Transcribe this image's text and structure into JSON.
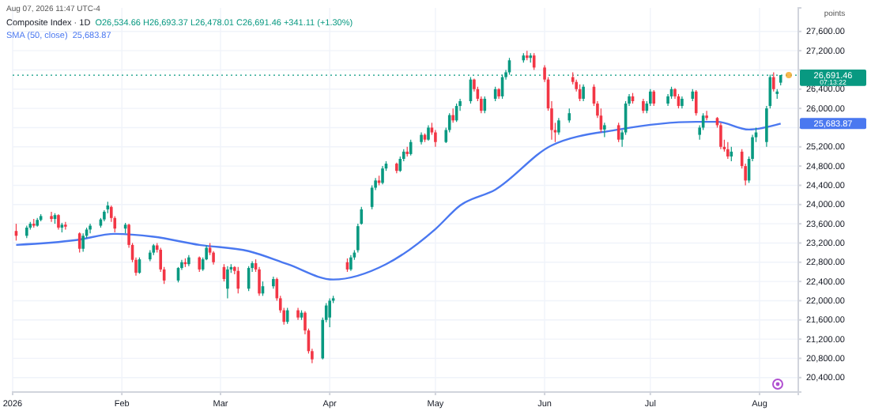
{
  "chart_data": {
    "type": "candlestick",
    "title": "Composite Index · 1D",
    "subtitle": "O26,534.66 H26,693.37 L26,478.01 C26,691.46 +341.11 (+1.30%)",
    "ylabel": "points",
    "x": [
      "2026-01-02",
      "2026-01-05",
      "2026-01-06",
      "2026-01-07",
      "2026-01-08",
      "2026-01-09",
      "2026-01-12",
      "2026-01-13",
      "2026-01-14",
      "2026-01-15",
      "2026-01-16",
      "2026-01-20",
      "2026-01-21",
      "2026-01-22",
      "2026-01-23",
      "2026-01-26",
      "2026-01-27",
      "2026-01-28",
      "2026-01-29",
      "2026-01-30",
      "2026-02-02",
      "2026-02-03",
      "2026-02-04",
      "2026-02-05",
      "2026-02-06",
      "2026-02-09",
      "2026-02-10",
      "2026-02-11",
      "2026-02-12",
      "2026-02-13",
      "2026-02-17",
      "2026-02-18",
      "2026-02-19",
      "2026-02-20",
      "2026-02-23",
      "2026-02-24",
      "2026-02-25",
      "2026-02-26",
      "2026-02-27",
      "2026-03-02",
      "2026-03-03",
      "2026-03-04",
      "2026-03-05",
      "2026-03-06",
      "2026-03-09",
      "2026-03-10",
      "2026-03-11",
      "2026-03-12",
      "2026-03-13",
      "2026-03-16",
      "2026-03-17",
      "2026-03-18",
      "2026-03-19",
      "2026-03-20",
      "2026-03-23",
      "2026-03-24",
      "2026-03-25",
      "2026-03-26",
      "2026-03-27",
      "2026-03-30",
      "2026-03-31",
      "2026-04-01",
      "2026-04-02",
      "2026-04-06",
      "2026-04-07",
      "2026-04-08",
      "2026-04-09",
      "2026-04-10",
      "2026-04-13",
      "2026-04-14",
      "2026-04-15",
      "2026-04-16",
      "2026-04-17",
      "2026-04-20",
      "2026-04-21",
      "2026-04-22",
      "2026-04-23",
      "2026-04-24",
      "2026-04-27",
      "2026-04-28",
      "2026-04-29",
      "2026-04-30",
      "2026-05-01",
      "2026-05-04",
      "2026-05-05",
      "2026-05-06",
      "2026-05-07",
      "2026-05-08",
      "2026-05-11",
      "2026-05-12",
      "2026-05-13",
      "2026-05-14",
      "2026-05-15",
      "2026-05-18",
      "2026-05-19",
      "2026-05-20",
      "2026-05-21",
      "2026-05-22",
      "2026-05-26",
      "2026-05-27",
      "2026-05-28",
      "2026-05-29",
      "2026-06-01",
      "2026-06-02",
      "2026-06-03",
      "2026-06-04",
      "2026-06-05",
      "2026-06-08",
      "2026-06-09",
      "2026-06-10",
      "2026-06-11",
      "2026-06-12",
      "2026-06-15",
      "2026-06-16",
      "2026-06-17",
      "2026-06-18",
      "2026-06-22",
      "2026-06-23",
      "2026-06-24",
      "2026-06-25",
      "2026-06-26",
      "2026-06-29",
      "2026-06-30",
      "2026-07-01",
      "2026-07-02",
      "2026-07-06",
      "2026-07-07",
      "2026-07-08",
      "2026-07-09",
      "2026-07-10",
      "2026-07-13",
      "2026-07-14",
      "2026-07-15",
      "2026-07-16",
      "2026-07-17",
      "2026-07-20",
      "2026-07-21",
      "2026-07-22",
      "2026-07-23",
      "2026-07-24",
      "2026-07-27",
      "2026-07-28",
      "2026-07-29",
      "2026-07-30",
      "2026-07-31",
      "2026-08-03",
      "2026-08-04",
      "2026-08-05",
      "2026-08-06",
      "2026-08-07"
    ],
    "ohlc": [
      [
        23450,
        23600,
        23250,
        23350
      ],
      [
        23350,
        23560,
        23300,
        23520
      ],
      [
        23520,
        23640,
        23480,
        23600
      ],
      [
        23600,
        23700,
        23520,
        23560
      ],
      [
        23560,
        23720,
        23540,
        23680
      ],
      [
        23680,
        23800,
        23650,
        23760
      ],
      [
        23760,
        23850,
        23640,
        23700
      ],
      [
        23700,
        23820,
        23600,
        23780
      ],
      [
        23780,
        23800,
        23480,
        23520
      ],
      [
        23520,
        23620,
        23420,
        23580
      ],
      [
        23580,
        23640,
        23480,
        23540
      ],
      [
        23400,
        23420,
        23000,
        23080
      ],
      [
        23080,
        23400,
        23020,
        23350
      ],
      [
        23350,
        23520,
        23300,
        23480
      ],
      [
        23480,
        23600,
        23400,
        23560
      ],
      [
        23560,
        23720,
        23520,
        23690
      ],
      [
        23690,
        23880,
        23650,
        23850
      ],
      [
        23900,
        24060,
        23820,
        23980
      ],
      [
        23950,
        23980,
        23640,
        23720
      ],
      [
        23720,
        23760,
        23420,
        23500
      ],
      [
        23500,
        23620,
        23400,
        23580
      ],
      [
        23580,
        23600,
        23100,
        23160
      ],
      [
        23160,
        23200,
        22800,
        22850
      ],
      [
        22850,
        22900,
        22520,
        22580
      ],
      [
        22580,
        22900,
        22560,
        22860
      ],
      [
        22860,
        23050,
        22820,
        23000
      ],
      [
        23000,
        23180,
        22950,
        23150
      ],
      [
        23150,
        23200,
        23000,
        23060
      ],
      [
        23060,
        23100,
        22600,
        22650
      ],
      [
        22650,
        22700,
        22350,
        22420
      ],
      [
        22420,
        22700,
        22380,
        22680
      ],
      [
        22680,
        22850,
        22640,
        22800
      ],
      [
        22800,
        22880,
        22700,
        22760
      ],
      [
        22760,
        22950,
        22720,
        22900
      ],
      [
        22900,
        22920,
        22600,
        22650
      ],
      [
        22650,
        22900,
        22620,
        22860
      ],
      [
        22860,
        23150,
        22840,
        23100
      ],
      [
        23100,
        23200,
        22950,
        23000
      ],
      [
        23000,
        23030,
        22750,
        22800
      ],
      [
        22700,
        22760,
        22400,
        22450
      ],
      [
        22250,
        22720,
        22050,
        22650
      ],
      [
        22650,
        22760,
        22580,
        22700
      ],
      [
        22700,
        22720,
        22550,
        22620
      ],
      [
        22620,
        22700,
        22150,
        22250
      ],
      [
        22250,
        22720,
        22200,
        22680
      ],
      [
        22680,
        22820,
        22600,
        22780
      ],
      [
        22780,
        22860,
        22600,
        22650
      ],
      [
        22650,
        22700,
        22100,
        22150
      ],
      [
        22150,
        22400,
        22100,
        22300
      ],
      [
        22300,
        22500,
        22250,
        22450
      ],
      [
        22450,
        22480,
        22000,
        22050
      ],
      [
        22050,
        22100,
        21750,
        21800
      ],
      [
        21800,
        21850,
        21500,
        21560
      ],
      [
        21560,
        21850,
        21520,
        21800
      ],
      [
        21800,
        21850,
        21600,
        21650
      ],
      [
        21650,
        21800,
        21600,
        21750
      ],
      [
        21750,
        21780,
        21300,
        21380
      ],
      [
        21380,
        21420,
        20900,
        20950
      ],
      [
        20950,
        21000,
        20700,
        20780
      ],
      [
        20800,
        21650,
        20780,
        21600
      ],
      [
        21600,
        21950,
        21550,
        21900
      ],
      [
        21650,
        22050,
        21450,
        22000
      ],
      [
        22000,
        22100,
        21950,
        22050
      ],
      [
        22800,
        22880,
        22600,
        22650
      ],
      [
        22650,
        22950,
        22620,
        22900
      ],
      [
        22900,
        23050,
        22850,
        23000
      ],
      [
        23050,
        23600,
        23000,
        23550
      ],
      [
        23600,
        23950,
        23580,
        23900
      ],
      [
        23950,
        24400,
        23900,
        24350
      ],
      [
        24350,
        24550,
        24300,
        24500
      ],
      [
        24500,
        24600,
        24400,
        24450
      ],
      [
        24450,
        24800,
        24420,
        24750
      ],
      [
        24750,
        24900,
        24700,
        24850
      ],
      [
        24850,
        24870,
        24650,
        24700
      ],
      [
        24700,
        25000,
        24680,
        24950
      ],
      [
        24950,
        25150,
        24900,
        25100
      ],
      [
        25100,
        25200,
        25000,
        25050
      ],
      [
        25050,
        25350,
        25020,
        25300
      ],
      [
        25300,
        25500,
        25250,
        25450
      ],
      [
        25450,
        25480,
        25300,
        25350
      ],
      [
        25350,
        25650,
        25330,
        25600
      ],
      [
        25600,
        25700,
        25450,
        25500
      ],
      [
        25500,
        25550,
        25200,
        25300
      ],
      [
        25300,
        25600,
        25280,
        25550
      ],
      [
        25550,
        25900,
        25500,
        25860
      ],
      [
        25860,
        26000,
        25700,
        25750
      ],
      [
        25750,
        26100,
        25720,
        26050
      ],
      [
        26050,
        26200,
        25950,
        26150
      ],
      [
        26150,
        26650,
        26100,
        26600
      ],
      [
        26600,
        26620,
        26350,
        26400
      ],
      [
        26400,
        26450,
        26150,
        26200
      ],
      [
        26200,
        26250,
        25900,
        25950
      ],
      [
        25950,
        26250,
        25900,
        26200
      ],
      [
        26200,
        26450,
        26150,
        26400
      ],
      [
        26400,
        26420,
        26200,
        26250
      ],
      [
        26250,
        26700,
        26200,
        26650
      ],
      [
        26650,
        26800,
        26600,
        26750
      ],
      [
        26750,
        27050,
        26700,
        27000
      ],
      [
        27000,
        27150,
        26950,
        27100
      ],
      [
        27100,
        27200,
        27000,
        27050
      ],
      [
        27050,
        27150,
        26950,
        27100
      ],
      [
        27100,
        27150,
        26800,
        26850
      ],
      [
        26850,
        26900,
        26550,
        26600
      ],
      [
        26600,
        26650,
        25950,
        26000
      ],
      [
        26000,
        26150,
        25350,
        25550
      ],
      [
        25550,
        25700,
        25300,
        25500
      ],
      [
        25500,
        25800,
        25450,
        25750
      ],
      [
        25750,
        26000,
        25700,
        25900
      ],
      [
        26650,
        26750,
        26500,
        26550
      ],
      [
        26550,
        26600,
        26350,
        26400
      ],
      [
        26400,
        26500,
        26150,
        26200
      ],
      [
        26200,
        26500,
        26150,
        26450
      ],
      [
        26450,
        26500,
        26050,
        26100
      ],
      [
        26100,
        26150,
        25800,
        25850
      ],
      [
        25850,
        26000,
        25500,
        25560
      ],
      [
        25560,
        25700,
        25400,
        25650
      ],
      [
        25650,
        25700,
        25300,
        25350
      ],
      [
        25350,
        25550,
        25200,
        25500
      ],
      [
        25500,
        26150,
        25450,
        26100
      ],
      [
        26100,
        26300,
        26050,
        26250
      ],
      [
        26250,
        26320,
        26100,
        26150
      ],
      [
        26150,
        26200,
        25900,
        25950
      ],
      [
        25950,
        26150,
        25900,
        26100
      ],
      [
        26100,
        26400,
        26050,
        26350
      ],
      [
        26350,
        26380,
        26050,
        26100
      ],
      [
        26100,
        26300,
        26050,
        26250
      ],
      [
        26250,
        26450,
        26200,
        26400
      ],
      [
        26400,
        26420,
        26200,
        26250
      ],
      [
        26250,
        26300,
        26000,
        26050
      ],
      [
        26050,
        26250,
        26000,
        26200
      ],
      [
        26200,
        26400,
        26150,
        26350
      ],
      [
        26350,
        26380,
        25850,
        25900
      ],
      [
        25450,
        25650,
        25350,
        25600
      ],
      [
        25600,
        25900,
        25550,
        25850
      ],
      [
        25850,
        25950,
        25750,
        25800
      ],
      [
        25800,
        25820,
        25600,
        25650
      ],
      [
        25650,
        25700,
        25150,
        25200
      ],
      [
        25200,
        25350,
        25100,
        25150
      ],
      [
        25150,
        25300,
        24950,
        25000
      ],
      [
        25000,
        25200,
        24900,
        25100
      ],
      [
        25100,
        25150,
        24750,
        24800
      ],
      [
        24800,
        24850,
        24400,
        24500
      ],
      [
        24500,
        25000,
        24450,
        24950
      ],
      [
        24950,
        25450,
        24900,
        25400
      ],
      [
        25400,
        25600,
        25300,
        25500
      ],
      [
        25300,
        26050,
        25200,
        26000
      ],
      [
        26050,
        26700,
        26000,
        26650
      ],
      [
        26650,
        26750,
        26350,
        26400
      ],
      [
        26300,
        26400,
        26200,
        26350.35
      ],
      [
        26534.66,
        26693.37,
        26478.01,
        26691.46
      ]
    ],
    "colors": [
      "#f23645",
      "#089981",
      "#089981",
      "#f23645",
      "#089981",
      "#089981",
      "#f23645",
      "#089981",
      "#f23645",
      "#089981",
      "#f23645",
      "#f23645",
      "#089981",
      "#089981",
      "#089981",
      "#089981",
      "#089981",
      "#089981",
      "#f23645",
      "#f23645",
      "#089981",
      "#f23645",
      "#f23645",
      "#f23645",
      "#089981",
      "#089981",
      "#089981",
      "#f23645",
      "#f23645",
      "#f23645",
      "#089981",
      "#089981",
      "#f23645",
      "#089981",
      "#f23645",
      "#089981",
      "#089981",
      "#f23645",
      "#f23645",
      "#f23645",
      "#089981",
      "#089981",
      "#f23645",
      "#f23645",
      "#089981",
      "#089981",
      "#f23645",
      "#f23645",
      "#089981",
      "#089981",
      "#f23645",
      "#f23645",
      "#f23645",
      "#089981",
      "#f23645",
      "#089981",
      "#f23645",
      "#f23645",
      "#f23645",
      "#089981",
      "#089981",
      "#089981",
      "#089981",
      "#f23645",
      "#089981",
      "#089981",
      "#089981",
      "#089981",
      "#089981",
      "#089981",
      "#f23645",
      "#089981",
      "#089981",
      "#f23645",
      "#089981",
      "#089981",
      "#f23645",
      "#089981",
      "#089981",
      "#f23645",
      "#089981",
      "#f23645",
      "#f23645",
      "#089981",
      "#089981",
      "#f23645",
      "#089981",
      "#089981",
      "#089981",
      "#f23645",
      "#f23645",
      "#f23645",
      "#089981",
      "#089981",
      "#f23645",
      "#089981",
      "#089981",
      "#089981",
      "#089981",
      "#f23645",
      "#089981",
      "#f23645",
      "#f23645",
      "#f23645",
      "#f23645",
      "#f23645",
      "#089981",
      "#089981",
      "#f23645",
      "#f23645",
      "#f23645",
      "#089981",
      "#f23645",
      "#f23645",
      "#f23645",
      "#089981",
      "#f23645",
      "#089981",
      "#089981",
      "#089981",
      "#f23645",
      "#f23645",
      "#089981",
      "#089981",
      "#f23645",
      "#089981",
      "#089981",
      "#f23645",
      "#f23645",
      "#089981",
      "#089981",
      "#f23645",
      "#089981",
      "#089981",
      "#f23645",
      "#f23645",
      "#f23645",
      "#f23645",
      "#f23645",
      "#089981",
      "#f23645",
      "#f23645",
      "#089981",
      "#089981",
      "#089981",
      "#089981",
      "#089981",
      "#f23645",
      "#089981",
      "#089981"
    ],
    "series": [
      {
        "type": "line",
        "name": "SMA (50, close)",
        "color": "#4a78f0",
        "x": [
          "2026-01-02",
          "2026-01-19",
          "2026-01-30",
          "2026-02-10",
          "2026-02-23",
          "2026-03-09",
          "2026-03-20",
          "2026-04-02",
          "2026-04-17",
          "2026-05-01",
          "2026-05-08",
          "2026-05-18",
          "2026-06-03",
          "2026-06-22",
          "2026-07-14",
          "2026-07-20",
          "2026-07-29",
          "2026-08-07"
        ],
        "values": [
          23160,
          23260,
          23390,
          23330,
          23160,
          23030,
          22760,
          22440,
          22760,
          23490,
          23980,
          24310,
          25230,
          25560,
          25720,
          25720,
          25560,
          25683.87
        ]
      }
    ],
    "xlim": [
      "2026-01-01",
      "2026-08-12"
    ],
    "xticks": [
      {
        "value": "2026-01-01",
        "label": "2026"
      },
      {
        "value": "2026-02-01",
        "label": "Feb"
      },
      {
        "value": "2026-03-01",
        "label": "Mar"
      },
      {
        "value": "2026-04-01",
        "label": "Apr"
      },
      {
        "value": "2026-05-01",
        "label": "May"
      },
      {
        "value": "2026-06-01",
        "label": "Jun"
      },
      {
        "value": "2026-07-01",
        "label": "Jul"
      },
      {
        "value": "2026-08-01",
        "label": "Aug"
      }
    ],
    "ylim": [
      20100,
      28090
    ],
    "yticks": [
      {
        "value": 20400,
        "label": "20,400.00"
      },
      {
        "value": 20800,
        "label": "20,800.00"
      },
      {
        "value": 21200,
        "label": "21,200.00"
      },
      {
        "value": 21600,
        "label": "21,600.00"
      },
      {
        "value": 22000,
        "label": "22,000.00"
      },
      {
        "value": 22400,
        "label": "22,400.00"
      },
      {
        "value": 22800,
        "label": "22,800.00"
      },
      {
        "value": 23200,
        "label": "23,200.00"
      },
      {
        "value": 23600,
        "label": "23,600.00"
      },
      {
        "value": 24000,
        "label": "24,000.00"
      },
      {
        "value": 24400,
        "label": "24,400.00"
      },
      {
        "value": 24800,
        "label": "24,800.00"
      },
      {
        "value": 25200,
        "label": "25,200.00"
      },
      {
        "value": 25600,
        "label": null
      },
      {
        "value": 26000,
        "label": "26,000.00"
      },
      {
        "value": 26400,
        "label": "26,400.00"
      },
      {
        "value": 26800,
        "label": null
      },
      {
        "value": 27200,
        "label": "27,200.00"
      },
      {
        "value": 27600,
        "label": "27,600.00"
      }
    ],
    "grid": true,
    "ref_lines": [
      {
        "axis": "y",
        "value": 26691.46,
        "label": "26,691.46",
        "color": "#089981",
        "line_style": "dotted"
      }
    ],
    "annotations": [
      "Aug 07, 2026 11:47 UTC-4",
      "07:13:22",
      "25,683.87"
    ]
  }
}
